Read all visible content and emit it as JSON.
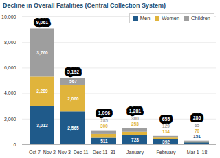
{
  "chart_data": {
    "type": "bar",
    "title": "Decline in Overall Fatalities (Central Collection System)",
    "categories": [
      "Oct 7–Nov 2",
      "Nov 3–Dec 11",
      "Dec 11–31",
      "January",
      "February",
      "Mar 1–18"
    ],
    "series": [
      {
        "name": "Men",
        "color": "#1f5a8a",
        "values": [
          3012,
          2565,
          511,
          728,
          392,
          151
        ],
        "value_labels": [
          "3,012",
          "2,565",
          "511",
          "728",
          "392",
          "151"
        ]
      },
      {
        "name": "Women",
        "color": "#e0b43c",
        "values": [
          2289,
          2060,
          300,
          253,
          134,
          70
        ],
        "value_labels": [
          "2,289",
          "2,060",
          "300",
          "253",
          "134",
          "70"
        ]
      },
      {
        "name": "Children",
        "color": "#9e9e9e",
        "values": [
          3760,
          567,
          285,
          300,
          129,
          65
        ],
        "value_labels": [
          "3,760",
          "567",
          "285",
          "300",
          "129",
          "65"
        ]
      }
    ],
    "totals": [
      9061,
      5192,
      1096,
      1281,
      655,
      286
    ],
    "total_labels": [
      "9,061",
      "5,192",
      "1,096",
      "1,281",
      "655",
      "286"
    ],
    "ylim": [
      0,
      10000
    ],
    "yticks": [
      0,
      {
        "value": 2000,
        "label": "2,000"
      },
      {
        "value": 4000,
        "label": "4,000"
      },
      {
        "value": 6000,
        "label": "6,000"
      },
      {
        "value": 8000,
        "label": "8,000"
      },
      {
        "value": 10000,
        "label": "10,000"
      }
    ],
    "stacked": true,
    "data_labels": true,
    "grid": true,
    "legend": "top-right"
  }
}
